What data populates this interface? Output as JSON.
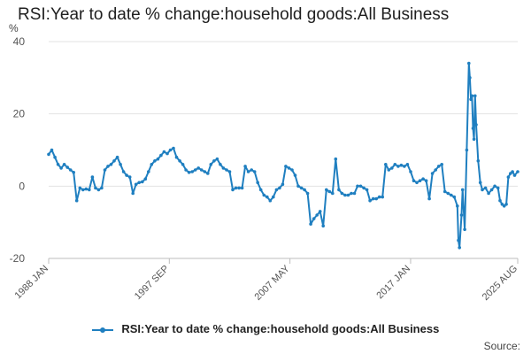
{
  "chart_data": {
    "type": "line",
    "title": "RSI:Year to date % change:household goods:All Business",
    "ylabel": "%",
    "xlabel": "",
    "ylim": [
      -20,
      40
    ],
    "yticks": [
      -20,
      0,
      20,
      40
    ],
    "xlim": [
      "1988-01",
      "2025-08"
    ],
    "xticks": [
      {
        "label": "1988 JAN",
        "date": "1988-01"
      },
      {
        "label": "1997 SEP",
        "date": "1997-09"
      },
      {
        "label": "2007 MAY",
        "date": "2007-05"
      },
      {
        "label": "2017 JAN",
        "date": "2017-01"
      },
      {
        "label": "2025 AUG",
        "date": "2025-08"
      }
    ],
    "grid": true,
    "legend_position": "bottom",
    "series": [
      {
        "name": "RSI:Year to date % change:household goods:All Business",
        "color": "#1f7fc0",
        "points": [
          [
            "1988-01",
            8.8
          ],
          [
            "1988-04",
            10
          ],
          [
            "1988-07",
            8
          ],
          [
            "1988-10",
            6
          ],
          [
            "1989-01",
            5
          ],
          [
            "1989-04",
            6
          ],
          [
            "1989-07",
            5.2
          ],
          [
            "1989-10",
            4.5
          ],
          [
            "1990-01",
            3.8
          ],
          [
            "1990-04",
            -4
          ],
          [
            "1990-07",
            -0.5
          ],
          [
            "1990-10",
            -1
          ],
          [
            "1991-01",
            -0.8
          ],
          [
            "1991-04",
            -1
          ],
          [
            "1991-07",
            2.5
          ],
          [
            "1991-10",
            -0.5
          ],
          [
            "1992-01",
            -1
          ],
          [
            "1992-04",
            -0.5
          ],
          [
            "1992-07",
            4.5
          ],
          [
            "1992-10",
            5.5
          ],
          [
            "1993-01",
            6
          ],
          [
            "1993-04",
            7
          ],
          [
            "1993-07",
            8
          ],
          [
            "1993-10",
            6
          ],
          [
            "1994-01",
            4
          ],
          [
            "1994-04",
            3
          ],
          [
            "1994-07",
            2.5
          ],
          [
            "1994-10",
            -2
          ],
          [
            "1995-01",
            0.5
          ],
          [
            "1995-04",
            1
          ],
          [
            "1995-07",
            1.2
          ],
          [
            "1995-10",
            2
          ],
          [
            "1996-01",
            4
          ],
          [
            "1996-04",
            6
          ],
          [
            "1996-07",
            7
          ],
          [
            "1996-10",
            7.5
          ],
          [
            "1997-01",
            8.5
          ],
          [
            "1997-04",
            9.5
          ],
          [
            "1997-07",
            9
          ],
          [
            "1997-10",
            10
          ],
          [
            "1998-01",
            10.5
          ],
          [
            "1998-04",
            8
          ],
          [
            "1998-07",
            7
          ],
          [
            "1998-10",
            6
          ],
          [
            "1999-01",
            4.5
          ],
          [
            "1999-04",
            3.8
          ],
          [
            "1999-07",
            4
          ],
          [
            "1999-10",
            4.5
          ],
          [
            "2000-01",
            5
          ],
          [
            "2000-04",
            4.5
          ],
          [
            "2000-07",
            4
          ],
          [
            "2000-10",
            3.5
          ],
          [
            "2001-01",
            6
          ],
          [
            "2001-04",
            7
          ],
          [
            "2001-07",
            7.5
          ],
          [
            "2001-10",
            6
          ],
          [
            "2002-01",
            5
          ],
          [
            "2002-04",
            4.5
          ],
          [
            "2002-07",
            4
          ],
          [
            "2002-10",
            -1
          ],
          [
            "2003-01",
            -0.5
          ],
          [
            "2003-04",
            -0.5
          ],
          [
            "2003-07",
            -0.5
          ],
          [
            "2003-10",
            5.5
          ],
          [
            "2004-01",
            4
          ],
          [
            "2004-04",
            4.5
          ],
          [
            "2004-07",
            4
          ],
          [
            "2004-10",
            1
          ],
          [
            "2005-01",
            -1
          ],
          [
            "2005-04",
            -2.5
          ],
          [
            "2005-07",
            -3
          ],
          [
            "2005-10",
            -4
          ],
          [
            "2006-01",
            -3
          ],
          [
            "2006-04",
            -1
          ],
          [
            "2006-07",
            -0.5
          ],
          [
            "2006-10",
            0.5
          ],
          [
            "2007-01",
            5.5
          ],
          [
            "2007-04",
            5
          ],
          [
            "2007-07",
            4.5
          ],
          [
            "2007-10",
            3
          ],
          [
            "2008-01",
            0
          ],
          [
            "2008-04",
            -0.5
          ],
          [
            "2008-07",
            -1
          ],
          [
            "2008-10",
            -2
          ],
          [
            "2009-01",
            -10.5
          ],
          [
            "2009-04",
            -9
          ],
          [
            "2009-07",
            -8
          ],
          [
            "2009-10",
            -7
          ],
          [
            "2010-01",
            -11
          ],
          [
            "2010-04",
            -1
          ],
          [
            "2010-07",
            -1.5
          ],
          [
            "2010-10",
            -2
          ],
          [
            "2011-01",
            7.5
          ],
          [
            "2011-04",
            -1
          ],
          [
            "2011-07",
            -2
          ],
          [
            "2011-10",
            -2.5
          ],
          [
            "2012-01",
            -2.5
          ],
          [
            "2012-04",
            -2
          ],
          [
            "2012-07",
            -2
          ],
          [
            "2012-10",
            0
          ],
          [
            "2013-01",
            0
          ],
          [
            "2013-04",
            -0.5
          ],
          [
            "2013-07",
            -1
          ],
          [
            "2013-10",
            -4
          ],
          [
            "2014-01",
            -3.5
          ],
          [
            "2014-04",
            -3.5
          ],
          [
            "2014-07",
            -3
          ],
          [
            "2014-10",
            -3
          ],
          [
            "2015-01",
            6
          ],
          [
            "2015-04",
            4.5
          ],
          [
            "2015-07",
            5
          ],
          [
            "2015-10",
            6
          ],
          [
            "2016-01",
            5.5
          ],
          [
            "2016-04",
            5.8
          ],
          [
            "2016-07",
            5.5
          ],
          [
            "2016-10",
            6
          ],
          [
            "2017-01",
            4
          ],
          [
            "2017-04",
            1.5
          ],
          [
            "2017-07",
            1
          ],
          [
            "2017-10",
            1.5
          ],
          [
            "2018-01",
            2
          ],
          [
            "2018-04",
            1.5
          ],
          [
            "2018-07",
            -3.5
          ],
          [
            "2018-10",
            3.5
          ],
          [
            "2019-01",
            4.5
          ],
          [
            "2019-04",
            5.5
          ],
          [
            "2019-07",
            6
          ],
          [
            "2019-10",
            -1.5
          ],
          [
            "2020-01",
            -2
          ],
          [
            "2020-04",
            -2.5
          ],
          [
            "2020-07",
            -3
          ],
          [
            "2020-10",
            -5.5
          ],
          [
            "2020-11",
            -15
          ],
          [
            "2020-12",
            -17
          ],
          [
            "2021-02",
            -8
          ],
          [
            "2021-03",
            -1
          ],
          [
            "2021-05",
            -12
          ],
          [
            "2021-07",
            10
          ],
          [
            "2021-09",
            34
          ],
          [
            "2021-10",
            30
          ],
          [
            "2021-11",
            24
          ],
          [
            "2021-12",
            25
          ],
          [
            "2022-01",
            16
          ],
          [
            "2022-02",
            13
          ],
          [
            "2022-03",
            25
          ],
          [
            "2022-04",
            17
          ],
          [
            "2022-06",
            7
          ],
          [
            "2022-08",
            1
          ],
          [
            "2022-10",
            -1
          ],
          [
            "2023-01",
            -0.5
          ],
          [
            "2023-04",
            -2
          ],
          [
            "2023-07",
            -1
          ],
          [
            "2023-10",
            0
          ],
          [
            "2024-01",
            -0.5
          ],
          [
            "2024-03",
            -4
          ],
          [
            "2024-05",
            -5
          ],
          [
            "2024-07",
            -5.5
          ],
          [
            "2024-09",
            -5
          ],
          [
            "2024-11",
            2.5
          ],
          [
            "2025-01",
            3.5
          ],
          [
            "2025-03",
            4
          ],
          [
            "2025-05",
            3
          ],
          [
            "2025-08",
            4
          ]
        ]
      }
    ]
  },
  "footer": {
    "source_label": "Source:"
  }
}
